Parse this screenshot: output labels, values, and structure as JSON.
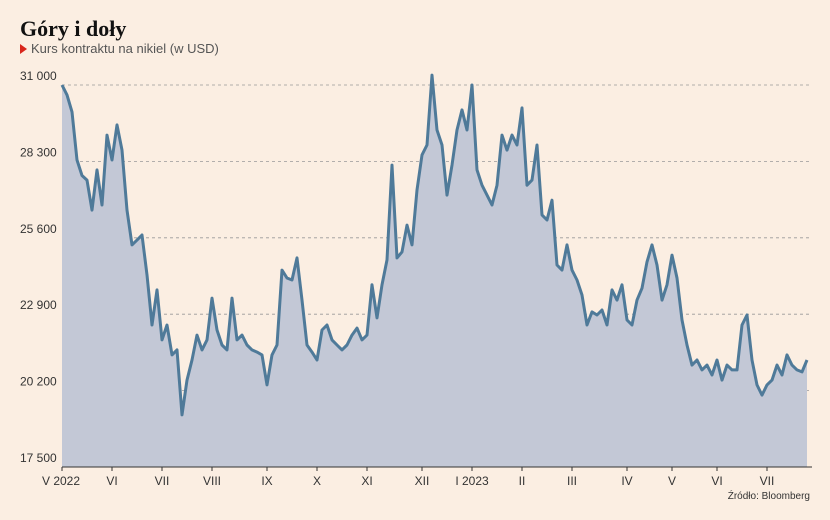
{
  "chart_data": {
    "type": "area",
    "title": "Góry i doły",
    "subtitle": "Kurs kontraktu na nikiel (w USD)",
    "source": "Źródło: Bloomberg",
    "color": "#4f7a99",
    "fill": "#c3c8d6",
    "grid": true,
    "ylim": [
      17500,
      31000
    ],
    "yticks": [
      {
        "value": 17500,
        "label": "17 500"
      },
      {
        "value": 20200,
        "label": "20 200"
      },
      {
        "value": 22900,
        "label": "22 900"
      },
      {
        "value": 25600,
        "label": "25 600"
      },
      {
        "value": 28300,
        "label": "28 300"
      },
      {
        "value": 31000,
        "label": "31 000"
      }
    ],
    "categories": [
      "V 2022",
      null,
      null,
      null,
      null,
      null,
      null,
      null,
      null,
      null,
      "VI",
      null,
      null,
      null,
      null,
      null,
      null,
      null,
      null,
      null,
      "VII",
      null,
      null,
      null,
      null,
      null,
      null,
      null,
      null,
      null,
      "VIII",
      null,
      null,
      null,
      null,
      null,
      null,
      null,
      null,
      null,
      null,
      "IX",
      null,
      null,
      null,
      null,
      null,
      null,
      null,
      null,
      null,
      "X",
      null,
      null,
      null,
      null,
      null,
      null,
      null,
      null,
      null,
      "XI",
      null,
      null,
      null,
      null,
      null,
      null,
      null,
      null,
      null,
      null,
      "XII",
      null,
      null,
      null,
      null,
      null,
      null,
      null,
      null,
      null,
      "I 2023",
      null,
      null,
      null,
      null,
      null,
      null,
      null,
      null,
      null,
      "II",
      null,
      null,
      null,
      null,
      null,
      null,
      null,
      null,
      null,
      "III",
      null,
      null,
      null,
      null,
      null,
      null,
      null,
      null,
      null,
      null,
      "IV",
      null,
      null,
      null,
      null,
      null,
      null,
      null,
      null,
      "V",
      null,
      null,
      null,
      null,
      null,
      null,
      null,
      null,
      "VI",
      null,
      null,
      null,
      null,
      null,
      null,
      null,
      null,
      null,
      "VII",
      null,
      null,
      null,
      null,
      null,
      null,
      null,
      null
    ],
    "values": [
      31000,
      30650,
      30050,
      28350,
      27800,
      27640,
      26580,
      28000,
      26760,
      29230,
      28350,
      29590,
      28700,
      26580,
      25350,
      25520,
      25700,
      24290,
      22520,
      23760,
      21990,
      22520,
      21460,
      21640,
      19340,
      20570,
      21280,
      22160,
      21640,
      21990,
      23470,
      22340,
      21810,
      21640,
      23470,
      21990,
      22160,
      21810,
      21640,
      21560,
      21460,
      20400,
      21460,
      21810,
      24460,
      24180,
      24110,
      24890,
      23400,
      21810,
      21560,
      21280,
      22340,
      22520,
      21990,
      21810,
      21640,
      21810,
      22160,
      22410,
      21990,
      22160,
      23940,
      22770,
      23940,
      24820,
      28170,
      24890,
      25100,
      26050,
      25350,
      27290,
      28530,
      28880,
      31350,
      29410,
      28880,
      27110,
      28170,
      29410,
      30120,
      29410,
      31000,
      28000,
      27460,
      27110,
      26760,
      27460,
      29230,
      28700,
      29230,
      28880,
      30190,
      27460,
      27640,
      28880,
      26410,
      26230,
      26930,
      24640,
      24460,
      25350,
      24460,
      24110,
      23580,
      22520,
      22980,
      22870,
      23050,
      22520,
      23760,
      23400,
      23940,
      22700,
      22520,
      23400,
      23820,
      24750,
      25350,
      24640,
      23400,
      23940,
      24990,
      24180,
      22700,
      21810,
      21100,
      21280,
      20930,
      21100,
      20750,
      21280,
      20570,
      21100,
      20930,
      20930,
      22520,
      22870,
      21280,
      20400,
      20040,
      20400,
      20570,
      21100,
      20750,
      21460,
      21100,
      20930,
      20860,
      21280
    ]
  }
}
